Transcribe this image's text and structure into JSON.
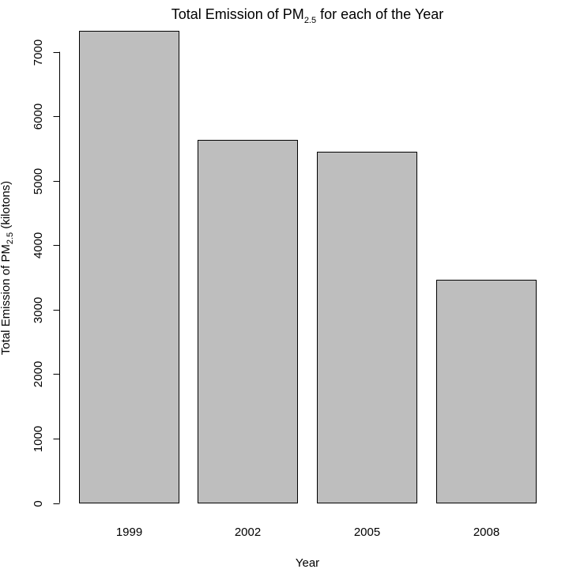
{
  "chart_data": {
    "type": "bar",
    "title": {
      "prefix": "Total Emission of PM",
      "subscript": "2.5",
      "suffix": " for each of the Year"
    },
    "xlabel": "Year",
    "ylabel": {
      "prefix": "Total Emission of PM",
      "subscript": "2.5",
      "suffix": " (kilotons)"
    },
    "categories": [
      "1999",
      "2002",
      "2005",
      "2008"
    ],
    "values": [
      7332,
      5636,
      5454,
      3464
    ],
    "ylim": [
      0,
      7332
    ],
    "yticks": [
      0,
      1000,
      2000,
      3000,
      4000,
      5000,
      6000,
      7000
    ],
    "bar_color": "#bebebe",
    "bar_border_color": "#000000",
    "grid": false,
    "legend": "none"
  }
}
